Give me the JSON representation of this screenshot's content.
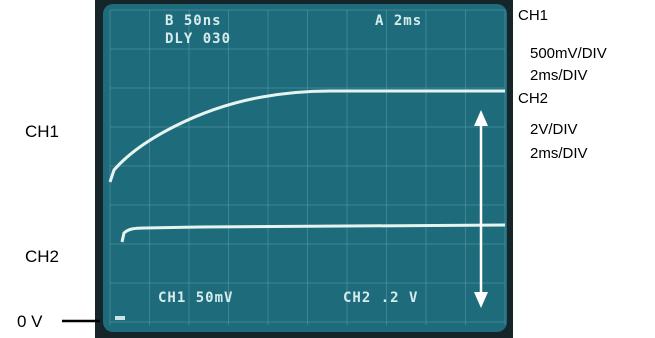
{
  "screen": {
    "top_left": [
      "B 50ns",
      "DLY 030"
    ],
    "top_right": "A 2ms",
    "bottom_left": "CH1 50mV",
    "bottom_right": "CH2 .2 V"
  },
  "left_labels": {
    "ch1": "CH1",
    "ch2": "CH2",
    "zero": "0 V"
  },
  "right_legend": [
    {
      "channel": "CH1",
      "scale": "500mV/DIV",
      "time": "2ms/DIV"
    },
    {
      "channel": "CH2",
      "scale": "2V/DIV",
      "time": "2ms/DIV"
    }
  ]
}
